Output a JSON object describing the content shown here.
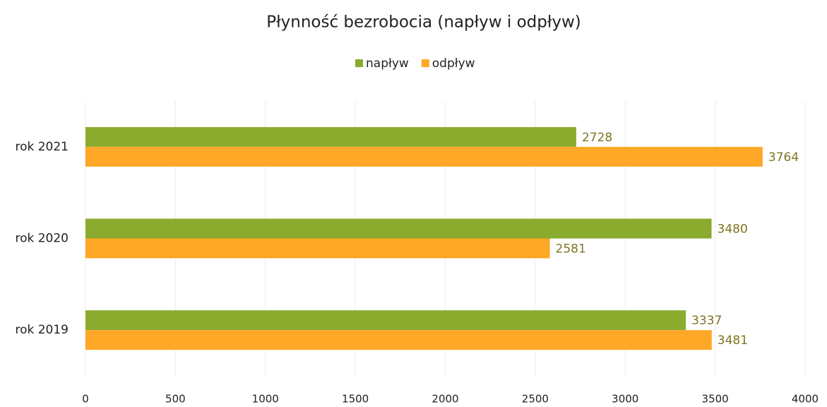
{
  "chart_data": {
    "type": "hbar",
    "title": "Płynność bezrobocia (napływ i odpływ)",
    "categories": [
      "rok 2021",
      "rok 2020",
      "rok 2019"
    ],
    "series": [
      {
        "name": "napływ",
        "color": "#8aab2e",
        "values": [
          2728,
          3480,
          3337
        ]
      },
      {
        "name": "odpływ",
        "color": "#ffa726",
        "values": [
          3764,
          2581,
          3481
        ]
      }
    ],
    "xlim": [
      0,
      4000
    ],
    "xticks": [
      0,
      500,
      1000,
      1500,
      2000,
      2500,
      3000,
      3500,
      4000
    ],
    "grid": true,
    "legend": "top"
  }
}
